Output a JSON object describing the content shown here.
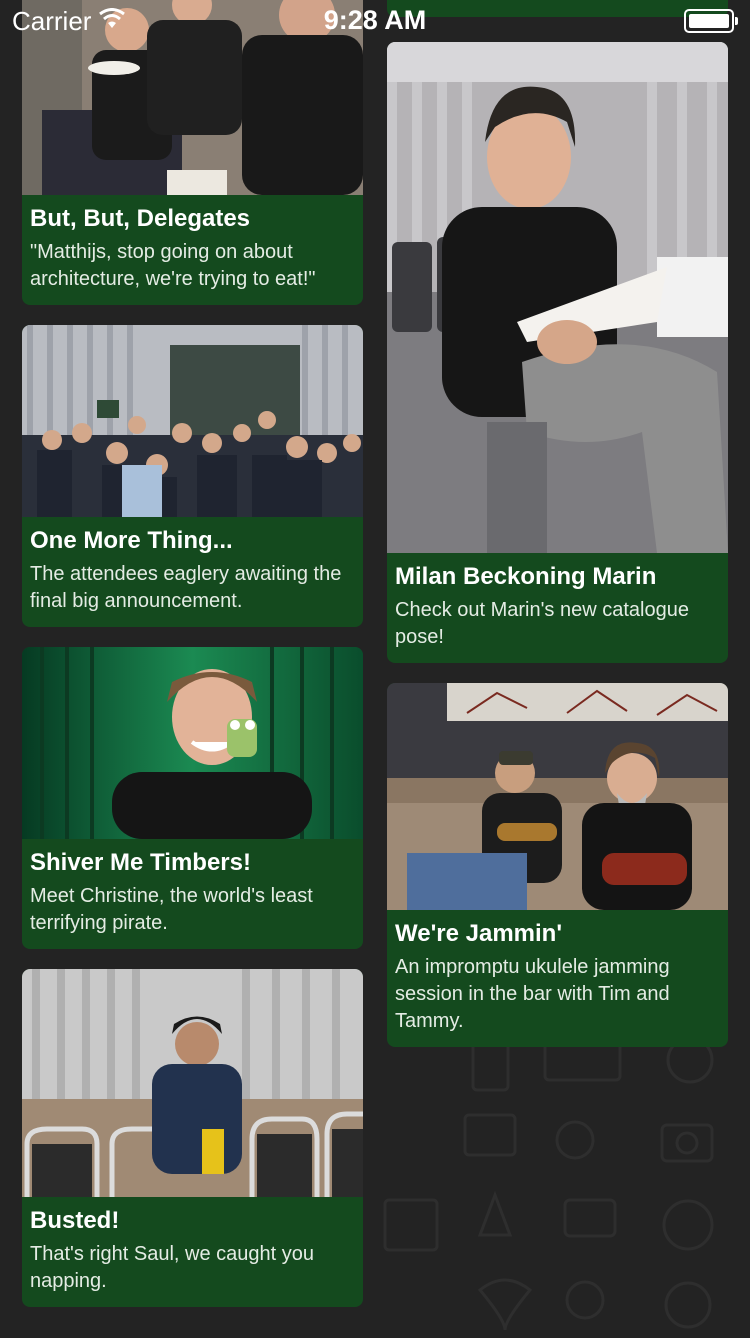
{
  "status_bar": {
    "carrier": "Carrier",
    "time": "9:28 AM",
    "wifi_icon": "wifi-icon",
    "battery_icon": "battery-icon",
    "battery_level": 1.0
  },
  "colors": {
    "background": "#232323",
    "card": "#144a1e",
    "title": "#ffffff",
    "caption": "#e4ece4"
  },
  "cards": [
    {
      "title": "But, But, Delegates",
      "caption": "\"Matthijs, stop going on about architecture, we're trying to eat!\""
    },
    {
      "title": "One More Thing...",
      "caption": "The attendees eaglery awaiting the final big announcement."
    },
    {
      "title": "Shiver Me Timbers!",
      "caption": "Meet Christine, the world's least terrifying pirate."
    },
    {
      "title": "Busted!",
      "caption": "That's right Saul, we caught you napping."
    },
    {
      "title": "Milan Beckoning Marin",
      "caption": "Check out Marin's new catalogue pose!"
    },
    {
      "title": "We're Jammin'",
      "caption": "An impromptu ukulele jamming session in the bar with Tim and Tammy."
    }
  ]
}
